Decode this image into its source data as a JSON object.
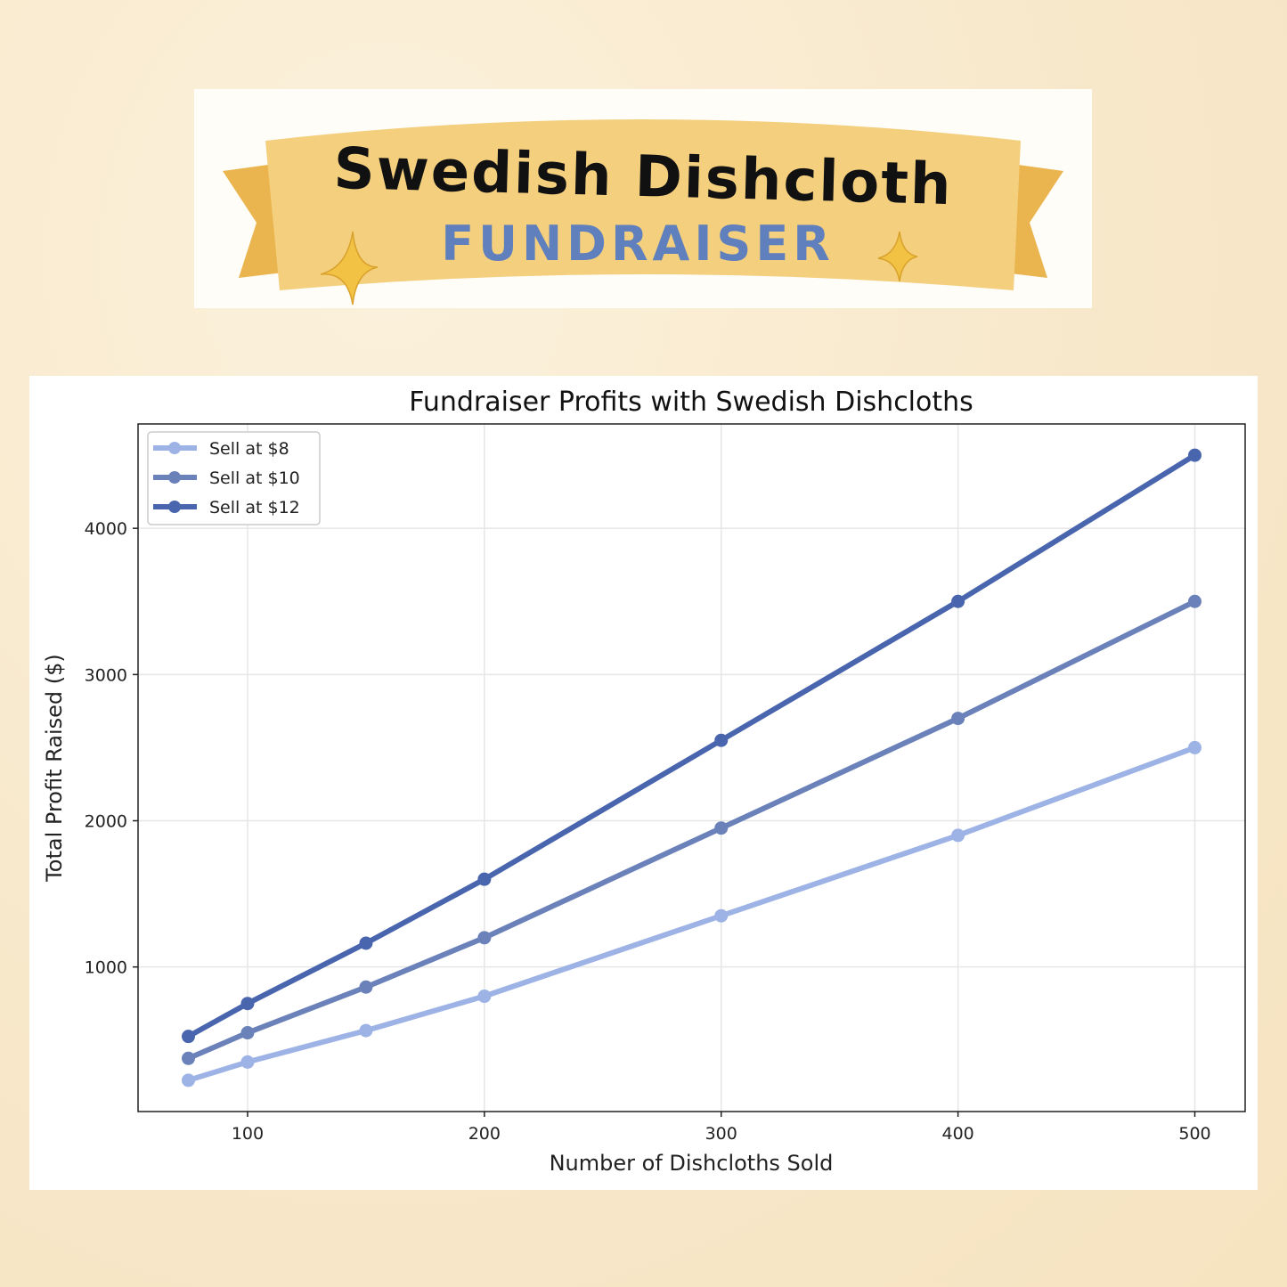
{
  "banner": {
    "title": "Swedish Dishcloth",
    "subtitle": "FUNDRAISER",
    "title_color": "#111111",
    "subtitle_color": "#5f7fbd",
    "ribbon_color": "#f4cf7e",
    "decorations": [
      "sparkle-icon",
      "sparkle-icon"
    ]
  },
  "chart_data": {
    "type": "line",
    "title": "Fundraiser Profits with Swedish Dishcloths",
    "xlabel": "Number of Dishcloths Sold",
    "ylabel": "Total Profit Raised ($)",
    "x": [
      75,
      100,
      150,
      200,
      300,
      400,
      500
    ],
    "xlim": [
      53.75,
      521.25
    ],
    "ylim": [
      11.25,
      4713.75
    ],
    "xticks": [
      100,
      200,
      300,
      400,
      500
    ],
    "yticks": [
      1000,
      2000,
      3000,
      4000
    ],
    "grid": true,
    "legend": "top-left",
    "series": [
      {
        "name": "Sell at $8",
        "color": "#9db3e6",
        "values": [
          225,
          350,
          565,
          800,
          1350,
          1900,
          2500
        ]
      },
      {
        "name": "Sell at $10",
        "color": "#6a82b9",
        "values": [
          375,
          550,
          862.5,
          1200,
          1950,
          2700,
          3500
        ]
      },
      {
        "name": "Sell at $12",
        "color": "#4865ae",
        "values": [
          525,
          750,
          1162.5,
          1600,
          2550,
          3500,
          4500
        ]
      }
    ]
  }
}
